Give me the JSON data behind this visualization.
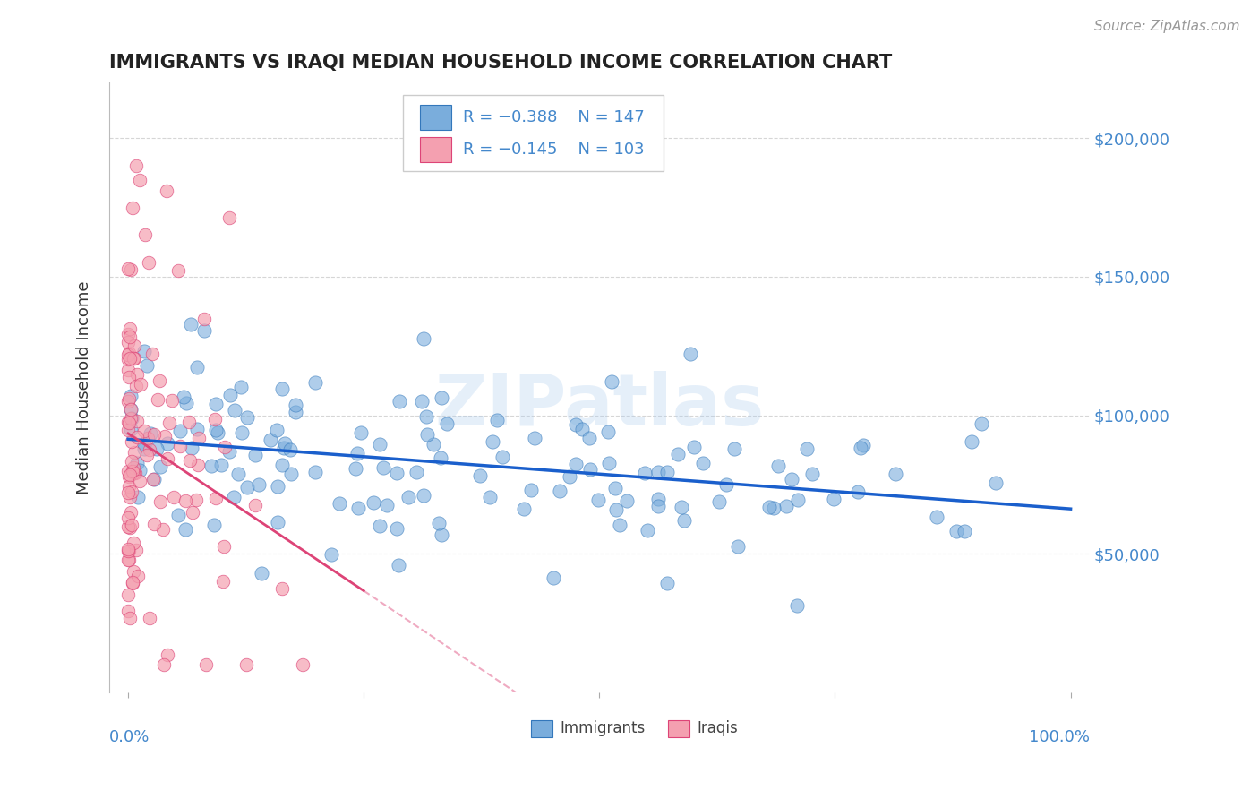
{
  "title": "IMMIGRANTS VS IRAQI MEDIAN HOUSEHOLD INCOME CORRELATION CHART",
  "source": "Source: ZipAtlas.com",
  "ylabel": "Median Household Income",
  "ylim": [
    0,
    220000
  ],
  "xlim": [
    -0.02,
    1.02
  ],
  "legend_r1": "R = −0.388",
  "legend_n1": "N = 147",
  "legend_r2": "R = −0.145",
  "legend_n2": "N = 103",
  "blue_color": "#7aaddc",
  "pink_color": "#f4a0b0",
  "trend_blue": "#1a5fcc",
  "trend_pink": "#dd4477",
  "watermark": "ZIPatlas",
  "title_color": "#222222",
  "axis_label_color": "#4488cc",
  "background_color": "#ffffff"
}
